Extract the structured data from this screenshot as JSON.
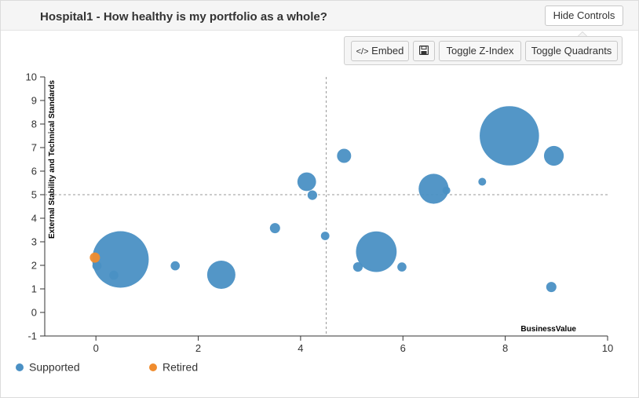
{
  "header": {
    "title": "Hospital1 - How healthy is my portfolio as a whole?"
  },
  "controls": {
    "hide_label": "Hide Controls",
    "embed_label": "Embed",
    "embed_icon": "code-icon",
    "save_icon": "floppy-disk-icon",
    "zindex_label": "Toggle Z-Index",
    "quadrants_label": "Toggle Quadrants"
  },
  "chart_data": {
    "type": "scatter",
    "title": "",
    "xlabel": "BusinessValue",
    "ylabel": "External Stability and Technical Standards",
    "xlim": [
      -1,
      10
    ],
    "ylim": [
      -1,
      10
    ],
    "xticks": [
      0,
      2,
      4,
      6,
      8,
      10
    ],
    "yticks": [
      -1,
      0,
      1,
      2,
      3,
      4,
      5,
      6,
      7,
      8,
      9,
      10
    ],
    "quadrant_lines": {
      "x": 4.5,
      "y": 5
    },
    "legend_position": "bottom-left",
    "series": [
      {
        "name": "Supported",
        "color": "#4a90c4",
        "points": [
          {
            "x": 0.48,
            "y": 2.25,
            "size": 1.0
          },
          {
            "x": 0.02,
            "y": 1.98,
            "size": 0.16
          },
          {
            "x": 0.35,
            "y": 1.58,
            "size": 0.16
          },
          {
            "x": 1.55,
            "y": 1.98,
            "size": 0.16
          },
          {
            "x": 2.45,
            "y": 1.6,
            "size": 0.5
          },
          {
            "x": 3.5,
            "y": 3.58,
            "size": 0.18
          },
          {
            "x": 4.12,
            "y": 5.55,
            "size": 0.33
          },
          {
            "x": 4.23,
            "y": 4.98,
            "size": 0.17
          },
          {
            "x": 4.48,
            "y": 3.25,
            "size": 0.15
          },
          {
            "x": 4.85,
            "y": 6.65,
            "size": 0.25
          },
          {
            "x": 5.12,
            "y": 1.93,
            "size": 0.17
          },
          {
            "x": 5.48,
            "y": 2.58,
            "size": 0.72
          },
          {
            "x": 5.98,
            "y": 1.93,
            "size": 0.16
          },
          {
            "x": 6.6,
            "y": 5.25,
            "size": 0.53
          },
          {
            "x": 6.85,
            "y": 5.18,
            "size": 0.14
          },
          {
            "x": 7.55,
            "y": 5.55,
            "size": 0.14
          },
          {
            "x": 8.08,
            "y": 7.5,
            "size": 1.05
          },
          {
            "x": 8.95,
            "y": 6.65,
            "size": 0.35
          },
          {
            "x": 8.9,
            "y": 1.08,
            "size": 0.18
          }
        ]
      },
      {
        "name": "Retired",
        "color": "#f08c2e",
        "points": [
          {
            "x": -0.02,
            "y": 2.33,
            "size": 0.18
          }
        ]
      }
    ]
  }
}
